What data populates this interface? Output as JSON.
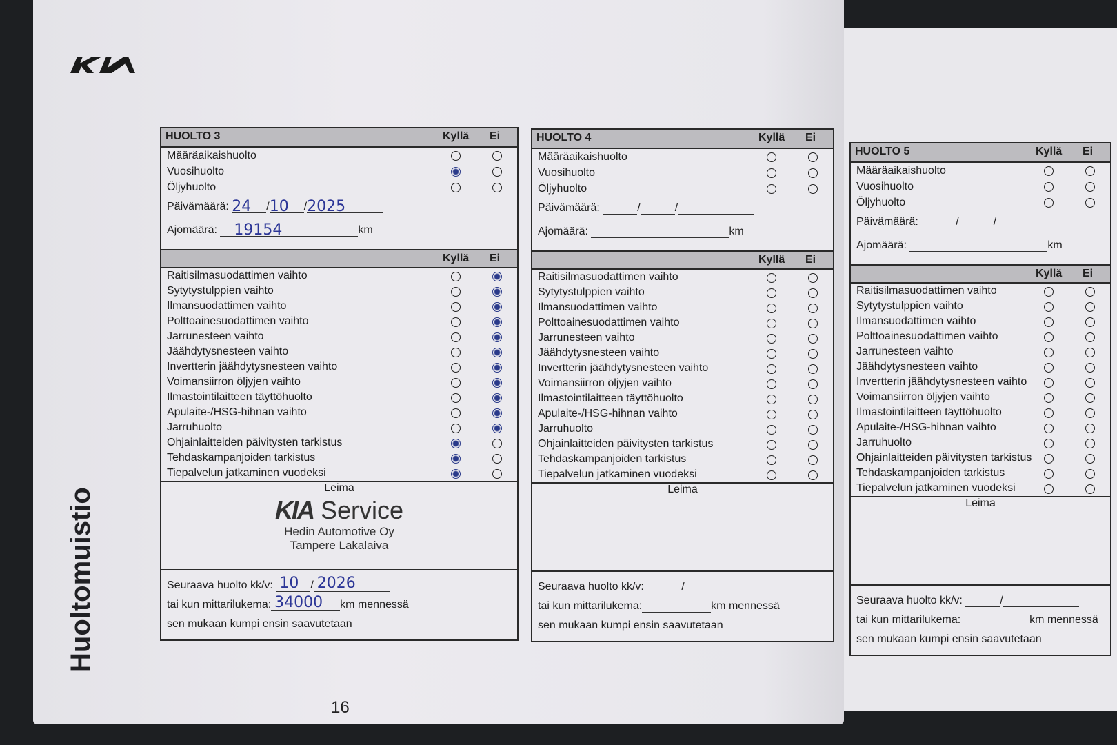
{
  "brand": "KIA",
  "side_title": "Huoltomuistio",
  "page_number": "16",
  "labels": {
    "yes": "Kyllä",
    "no": "Ei",
    "date": "Päivämäärä:",
    "mileage": "Ajomäärä:",
    "km": "km",
    "stamp": "Leima",
    "next_service": "Seuraava huolto kk/v:",
    "or_odometer": "tai kun mittarilukema:",
    "km_by": "km mennessä",
    "whichever": "sen mukaan kumpi ensin saavutetaan"
  },
  "service_types": [
    "Määräaikaishuolto",
    "Vuosihuolto",
    "Öljyhuolto"
  ],
  "tasks": [
    "Raitisilmasuodattimen vaihto",
    "Sytytystulppien vaihto",
    "Ilmansuodattimen vaihto",
    "Polttoainesuodattimen vaihto",
    "Jarrunesteen vaihto",
    "Jäähdytysnesteen vaihto",
    "Invertterin jäähdytysnesteen vaihto",
    "Voimansiirron öljyjen vaihto",
    "Ilmastointilaitteen täyttöhuolto",
    "Apulaite-/HSG-hihnan vaihto",
    "Jarruhuolto",
    "Ohjainlaitteiden päivitysten tarkistus",
    "Tehdaskampanjoiden tarkistus",
    "Tiepalvelun jatkaminen vuodeksi"
  ],
  "services": [
    {
      "title": "HUOLTO 3",
      "type_checks": [
        "",
        "yes",
        ""
      ],
      "task_checks": [
        "no",
        "no",
        "no",
        "no",
        "no",
        "no",
        "no",
        "no",
        "no",
        "no",
        "no",
        "yes",
        "yes",
        "yes"
      ],
      "date": {
        "day": "24",
        "month": "10",
        "year": "2025"
      },
      "mileage": "19154",
      "stamp": {
        "logo": "KIA",
        "service": "Service",
        "dealer": "Hedin Automotive Oy",
        "location": "Tampere Lakalaiva"
      },
      "next": {
        "month": "10",
        "year": "2026",
        "odometer": "34000"
      }
    },
    {
      "title": "HUOLTO 4",
      "type_checks": [
        "",
        "",
        ""
      ],
      "task_checks": [
        "",
        "",
        "",
        "",
        "",
        "",
        "",
        "",
        "",
        "",
        "",
        "",
        "",
        ""
      ],
      "date": {
        "day": "",
        "month": "",
        "year": ""
      },
      "mileage": "",
      "stamp": {
        "logo": "",
        "service": "",
        "dealer": "",
        "location": ""
      },
      "next": {
        "month": "",
        "year": "",
        "odometer": ""
      }
    },
    {
      "title": "HUOLTO 5",
      "type_checks": [
        "",
        "",
        ""
      ],
      "task_checks": [
        "",
        "",
        "",
        "",
        "",
        "",
        "",
        "",
        "",
        "",
        "",
        "",
        "",
        ""
      ],
      "date": {
        "day": "",
        "month": "",
        "year": ""
      },
      "mileage": "",
      "stamp": {
        "logo": "",
        "service": "",
        "dealer": "",
        "location": ""
      },
      "next": {
        "month": "",
        "year": "",
        "odometer": ""
      }
    }
  ],
  "colors": {
    "ink": "#2b3596",
    "header_fill": "#bdbcc0",
    "paper": "#ebeaee"
  }
}
